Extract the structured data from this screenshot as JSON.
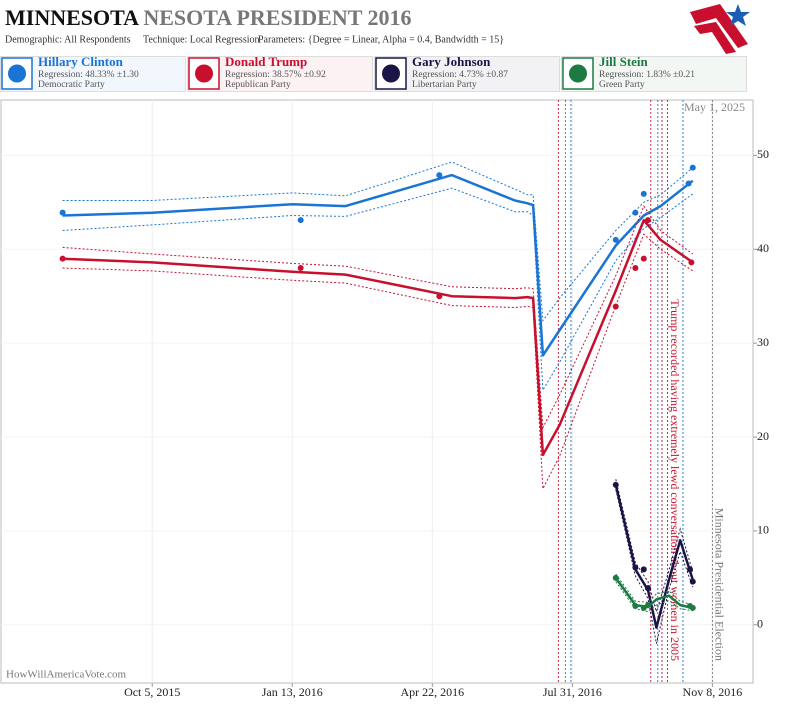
{
  "chart_data": {
    "type": "line",
    "title": [
      "MINNESOTA",
      "NESOTA PRESIDENT 2016"
    ],
    "subtitle": [
      "Demographic: All Respondents",
      "Technique: Local Regression",
      "Parameters: {Degree = Linear, Alpha = 0.4, Bandwidth = 15}"
    ],
    "date_note": "May 1, 2025",
    "source": "HowWillAmericaVote.com",
    "xlim": [
      "2015-06-19",
      "2016-12-07"
    ],
    "xticks": [
      {
        "value": "2015-10-05",
        "label": "Oct 5, 2015"
      },
      {
        "value": "2016-01-13",
        "label": "Jan 13, 2016"
      },
      {
        "value": "2016-04-22",
        "label": "Apr 22, 2016"
      },
      {
        "value": "2016-07-31",
        "label": "Jul 31, 2016"
      },
      {
        "value": "2016-11-08",
        "label": "Nov 8, 2016"
      }
    ],
    "ylim": [
      -6.2,
      55.9
    ],
    "yticks": [
      0,
      10,
      20,
      30,
      40,
      50
    ],
    "grid": true,
    "series": [
      {
        "name": "Hillary Clinton",
        "color": "#1a74d6",
        "regression": "Regression: 48.33% ±1.30",
        "party": "Democratic Party",
        "x": [
          "2015-08-02",
          "2016-01-19",
          "2016-04-27",
          "2016-08-31",
          "2016-09-14",
          "2016-09-20",
          "2016-10-22",
          "2016-10-25"
        ],
        "values": [
          43.9,
          43.1,
          47.9,
          41.0,
          43.9,
          45.9,
          47.0,
          48.7
        ],
        "trend_x": [
          "2015-08-02",
          "2015-10-05",
          "2016-01-13",
          "2016-02-20",
          "2016-05-06",
          "2016-06-20",
          "2016-06-29",
          "2016-07-03",
          "2016-07-10",
          "2016-07-22",
          "2016-08-31",
          "2016-09-20",
          "2016-10-02",
          "2016-10-25"
        ],
        "trend_values": [
          43.6,
          43.9,
          44.8,
          44.6,
          47.9,
          45.2,
          44.9,
          44.7,
          28.7,
          31.4,
          40.4,
          43.6,
          44.6,
          47.3
        ],
        "trend_lower": [
          42.0,
          42.6,
          43.6,
          43.5,
          46.5,
          44.0,
          44.0,
          43.6,
          25.0,
          28.0,
          38.8,
          42.2,
          43.4,
          45.9
        ],
        "trend_upper": [
          45.2,
          45.2,
          46.0,
          45.7,
          49.3,
          46.4,
          45.8,
          45.8,
          32.4,
          34.8,
          42.0,
          45.0,
          45.8,
          48.7
        ]
      },
      {
        "name": "Donald Trump",
        "color": "#c8102e",
        "regression": "Regression: 38.57% ±0.92",
        "party": "Republican Party",
        "x": [
          "2015-08-02",
          "2016-01-19",
          "2016-04-27",
          "2016-08-31",
          "2016-09-14",
          "2016-09-20",
          "2016-09-23",
          "2016-10-24"
        ],
        "values": [
          39.0,
          38.0,
          35.0,
          33.9,
          38.0,
          39.0,
          43.1,
          38.6
        ],
        "trend_x": [
          "2015-08-02",
          "2015-10-05",
          "2016-01-13",
          "2016-02-20",
          "2016-05-06",
          "2016-06-20",
          "2016-06-29",
          "2016-07-03",
          "2016-07-10",
          "2016-07-22",
          "2016-08-31",
          "2016-09-20",
          "2016-10-02",
          "2016-10-25"
        ],
        "trend_values": [
          39.0,
          38.6,
          37.6,
          37.3,
          35.0,
          34.8,
          34.9,
          34.8,
          18.1,
          21.3,
          35.6,
          43.1,
          41.0,
          38.6
        ],
        "trend_lower": [
          38.0,
          37.7,
          36.7,
          36.4,
          34.0,
          33.8,
          33.9,
          33.8,
          14.5,
          18.0,
          34.0,
          41.6,
          40.0,
          37.7
        ],
        "trend_upper": [
          40.2,
          39.5,
          38.5,
          38.2,
          36.0,
          35.8,
          35.9,
          35.8,
          21.0,
          24.5,
          37.2,
          44.6,
          42.0,
          39.5
        ]
      },
      {
        "name": "Gary Johnson",
        "color": "#1b1547",
        "regression": "Regression: 4.73% ±0.87",
        "party": "Libertarian Party",
        "x": [
          "2016-08-31",
          "2016-09-14",
          "2016-09-20",
          "2016-09-23",
          "2016-10-23",
          "2016-10-25"
        ],
        "values": [
          14.9,
          6.1,
          5.9,
          3.9,
          5.9,
          4.6
        ],
        "trend_x": [
          "2016-08-31",
          "2016-09-14",
          "2016-09-23",
          "2016-09-29",
          "2016-10-08",
          "2016-10-16",
          "2016-10-25"
        ],
        "trend_values": [
          14.9,
          5.9,
          3.7,
          -0.3,
          4.8,
          9.0,
          4.8
        ],
        "trend_lower": [
          14.4,
          5.2,
          2.8,
          -2.0,
          3.8,
          7.8,
          4.0
        ],
        "trend_upper": [
          15.5,
          6.6,
          4.6,
          1.4,
          5.8,
          10.2,
          5.6
        ]
      },
      {
        "name": "Jill Stein",
        "color": "#1d7a42",
        "regression": "Regression: 1.83% ±0.21",
        "party": "Green Party",
        "x": [
          "2016-08-31",
          "2016-09-14",
          "2016-09-20",
          "2016-09-23",
          "2016-10-23",
          "2016-10-25"
        ],
        "values": [
          5.0,
          2.0,
          1.8,
          2.1,
          2.0,
          1.8
        ],
        "trend_x": [
          "2016-08-31",
          "2016-09-14",
          "2016-09-23",
          "2016-09-29",
          "2016-10-08",
          "2016-10-16",
          "2016-10-25"
        ],
        "trend_values": [
          5.0,
          2.1,
          1.9,
          2.7,
          3.1,
          2.1,
          1.8
        ],
        "trend_lower": [
          4.6,
          1.7,
          1.4,
          2.1,
          2.6,
          1.7,
          1.5
        ],
        "trend_upper": [
          5.4,
          2.5,
          2.4,
          3.3,
          3.6,
          2.5,
          2.1
        ]
      }
    ],
    "events": [
      {
        "x": "2016-07-21",
        "color": "#c8102e"
      },
      {
        "x": "2016-07-26",
        "color": "#1a74d6"
      },
      {
        "x": "2016-07-30",
        "color": "#1a74d6"
      },
      {
        "x": "2016-09-25",
        "color": "#c8102e"
      },
      {
        "x": "2016-09-30",
        "color": "#1a74d6"
      },
      {
        "x": "2016-10-03",
        "color": "#c8102e"
      },
      {
        "x": "2016-10-07",
        "color": "#c8102e",
        "label": "Trump recorded having extremely lewd conversation about women in 2005"
      },
      {
        "x": "2016-10-18",
        "color": "#1a74d6"
      },
      {
        "x": "2016-11-08",
        "color": "#777777",
        "label": "Minnesota Presidential Election"
      }
    ]
  }
}
